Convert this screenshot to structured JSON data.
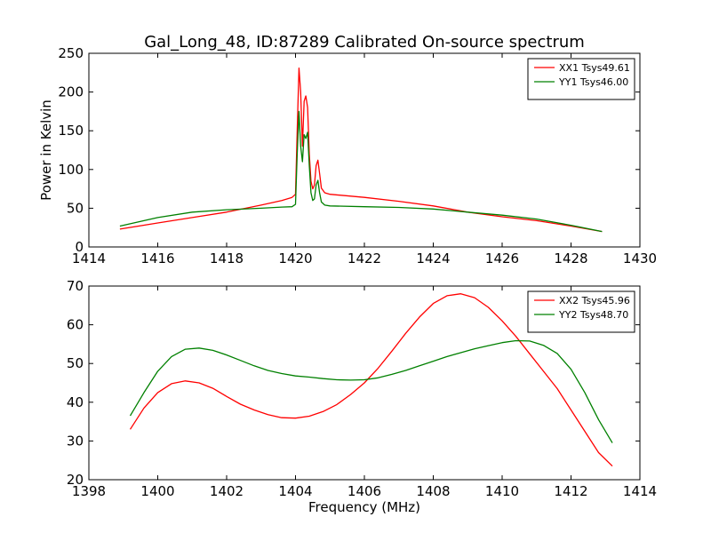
{
  "figure_title": "Gal_Long_48, ID:87289 Calibrated On-source spectrum",
  "colors": {
    "xx": "#ff0000",
    "yy": "#008000"
  },
  "chart_data": [
    {
      "type": "line",
      "title": "Gal_Long_48, ID:87289 Calibrated On-source spectrum",
      "xlabel": "",
      "ylabel": "Power in Kelvin",
      "xlim": [
        1414,
        1430
      ],
      "ylim": [
        0,
        250
      ],
      "xticks": [
        "1414",
        "1416",
        "1418",
        "1420",
        "1422",
        "1424",
        "1426",
        "1428",
        "1430"
      ],
      "yticks": [
        "0",
        "50",
        "100",
        "150",
        "200",
        "250"
      ],
      "legend": "top-right",
      "grid": false,
      "series": [
        {
          "name": "XX1 Tsys49.61",
          "color": "#ff0000",
          "x": [
            1414.9,
            1416,
            1417,
            1418,
            1419,
            1419.6,
            1419.9,
            1420.0,
            1420.05,
            1420.1,
            1420.15,
            1420.2,
            1420.25,
            1420.3,
            1420.35,
            1420.4,
            1420.45,
            1420.5,
            1420.55,
            1420.6,
            1420.65,
            1420.7,
            1420.75,
            1420.85,
            1421,
            1422,
            1423,
            1424,
            1425,
            1426,
            1427,
            1428,
            1428.9
          ],
          "y": [
            23,
            31,
            38,
            45,
            54,
            60,
            64,
            68,
            150,
            231,
            200,
            130,
            188,
            195,
            180,
            120,
            85,
            75,
            80,
            105,
            112,
            95,
            76,
            70,
            68,
            64,
            59,
            53,
            45,
            39,
            34,
            27,
            20
          ]
        },
        {
          "name": "YY1 Tsys46.00",
          "color": "#008000",
          "x": [
            1414.9,
            1416,
            1417,
            1418,
            1419,
            1419.6,
            1419.9,
            1420.0,
            1420.05,
            1420.1,
            1420.15,
            1420.2,
            1420.25,
            1420.3,
            1420.35,
            1420.4,
            1420.45,
            1420.5,
            1420.55,
            1420.6,
            1420.65,
            1420.7,
            1420.75,
            1420.85,
            1421,
            1422,
            1423,
            1424,
            1425,
            1426,
            1427,
            1428,
            1428.9
          ],
          "y": [
            27,
            38,
            45,
            48,
            50,
            51.5,
            52,
            55,
            120,
            175,
            130,
            110,
            145,
            140,
            148,
            105,
            70,
            60,
            62,
            80,
            86,
            70,
            58,
            54,
            53,
            52,
            51,
            49,
            45,
            41,
            36,
            28,
            20
          ]
        }
      ]
    },
    {
      "type": "line",
      "title": "",
      "xlabel": "Frequency (MHz)",
      "ylabel": "",
      "xlim": [
        1398,
        1414
      ],
      "ylim": [
        20,
        70
      ],
      "xticks": [
        "1398",
        "1400",
        "1402",
        "1404",
        "1406",
        "1408",
        "1410",
        "1412",
        "1414"
      ],
      "yticks": [
        "20",
        "30",
        "40",
        "50",
        "60",
        "70"
      ],
      "legend": "top-right",
      "grid": false,
      "series": [
        {
          "name": "XX2 Tsys45.96",
          "color": "#ff0000",
          "x": [
            1399.2,
            1399.6,
            1400.0,
            1400.4,
            1400.8,
            1401.2,
            1401.6,
            1402.0,
            1402.4,
            1402.8,
            1403.2,
            1403.6,
            1404.0,
            1404.4,
            1404.8,
            1405.2,
            1405.6,
            1406.0,
            1406.4,
            1406.8,
            1407.2,
            1407.6,
            1408.0,
            1408.4,
            1408.8,
            1409.2,
            1409.6,
            1410.0,
            1410.4,
            1410.8,
            1411.2,
            1411.6,
            1412.0,
            1412.4,
            1412.8,
            1413.2
          ],
          "y": [
            33,
            38.5,
            42.5,
            44.8,
            45.5,
            45,
            43.6,
            41.5,
            39.5,
            38,
            36.8,
            36,
            35.9,
            36.4,
            37.6,
            39.4,
            42,
            45,
            48.8,
            53.2,
            57.8,
            62,
            65.5,
            67.5,
            68,
            67,
            64.5,
            61,
            57,
            52.5,
            48,
            43.5,
            38,
            32.5,
            27,
            23.5
          ]
        },
        {
          "name": "YY2 Tsys48.70",
          "color": "#008000",
          "x": [
            1399.2,
            1399.6,
            1400.0,
            1400.4,
            1400.8,
            1401.2,
            1401.6,
            1402.0,
            1402.4,
            1402.8,
            1403.2,
            1403.6,
            1404.0,
            1404.4,
            1404.8,
            1405.2,
            1405.6,
            1406.0,
            1406.4,
            1406.8,
            1407.2,
            1407.6,
            1408.0,
            1408.4,
            1408.8,
            1409.2,
            1409.6,
            1410.0,
            1410.4,
            1410.8,
            1411.2,
            1411.6,
            1412.0,
            1412.4,
            1412.8,
            1413.2
          ],
          "y": [
            36.5,
            42.5,
            48,
            51.8,
            53.7,
            54,
            53.4,
            52.2,
            50.8,
            49.4,
            48.2,
            47.4,
            46.8,
            46.5,
            46.1,
            45.8,
            45.7,
            45.8,
            46.3,
            47.2,
            48.2,
            49.4,
            50.6,
            51.8,
            52.8,
            53.8,
            54.6,
            55.4,
            55.9,
            55.8,
            54.7,
            52.6,
            48.5,
            42.5,
            35.5,
            29.5
          ]
        }
      ]
    }
  ]
}
